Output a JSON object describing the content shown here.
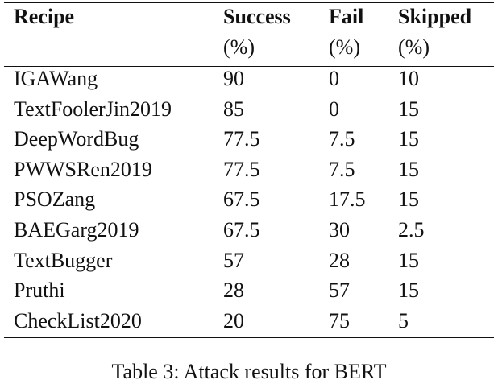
{
  "table": {
    "columns": [
      {
        "label": "Recipe"
      },
      {
        "label": "Success",
        "unit": "(%)"
      },
      {
        "label": "Fail",
        "unit": "(%)"
      },
      {
        "label": "Skipped",
        "unit": "(%)"
      }
    ],
    "rows": [
      [
        "IGAWang",
        90,
        0,
        10
      ],
      [
        "TextFoolerJin2019",
        85,
        0,
        15
      ],
      [
        "DeepWordBug",
        77.5,
        7.5,
        15
      ],
      [
        "PWWSRen2019",
        77.5,
        7.5,
        15
      ],
      [
        "PSOZang",
        67.5,
        17.5,
        15
      ],
      [
        "BAEGarg2019",
        67.5,
        30,
        2.5
      ],
      [
        "TextBugger",
        57,
        28,
        15
      ],
      [
        "Pruthi",
        28,
        57,
        15
      ],
      [
        "CheckList2020",
        20,
        75,
        5
      ]
    ],
    "caption": "Table 3: Attack results for BERT"
  }
}
